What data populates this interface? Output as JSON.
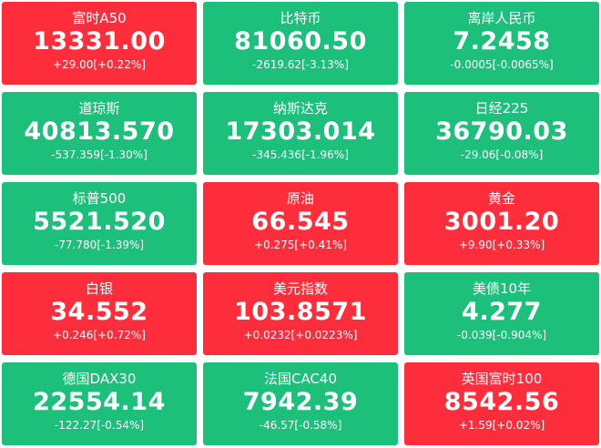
{
  "colors": {
    "up": "#fe2d3c",
    "down": "#1cc07a",
    "text": "#ffffff"
  },
  "cards": [
    {
      "name": "富时A50",
      "price": "13331.00",
      "change": "+29.00[+0.22%]",
      "direction": "up"
    },
    {
      "name": "比特币",
      "price": "81060.50",
      "change": "-2619.62[-3.13%]",
      "direction": "down"
    },
    {
      "name": "离岸人民币",
      "price": "7.2458",
      "change": "-0.0005[-0.0065%]",
      "direction": "down"
    },
    {
      "name": "道琼斯",
      "price": "40813.570",
      "change": "-537.359[-1.30%]",
      "direction": "down"
    },
    {
      "name": "纳斯达克",
      "price": "17303.014",
      "change": "-345.436[-1.96%]",
      "direction": "down"
    },
    {
      "name": "日经225",
      "price": "36790.03",
      "change": "-29.06[-0.08%]",
      "direction": "down"
    },
    {
      "name": "标普500",
      "price": "5521.520",
      "change": "-77.780[-1.39%]",
      "direction": "down"
    },
    {
      "name": "原油",
      "price": "66.545",
      "change": "+0.275[+0.41%]",
      "direction": "up"
    },
    {
      "name": "黄金",
      "price": "3001.20",
      "change": "+9.90[+0.33%]",
      "direction": "up"
    },
    {
      "name": "白银",
      "price": "34.552",
      "change": "+0.246[+0.72%]",
      "direction": "up"
    },
    {
      "name": "美元指数",
      "price": "103.8571",
      "change": "+0.0232[+0.0223%]",
      "direction": "up"
    },
    {
      "name": "美债10年",
      "price": "4.277",
      "change": "-0.039[-0.904%]",
      "direction": "down"
    },
    {
      "name": "德国DAX30",
      "price": "22554.14",
      "change": "-122.27[-0.54%]",
      "direction": "down"
    },
    {
      "name": "法国CAC40",
      "price": "7942.39",
      "change": "-46.57[-0.58%]",
      "direction": "down"
    },
    {
      "name": "英国富时100",
      "price": "8542.56",
      "change": "+1.59[+0.02%]",
      "direction": "up"
    }
  ]
}
